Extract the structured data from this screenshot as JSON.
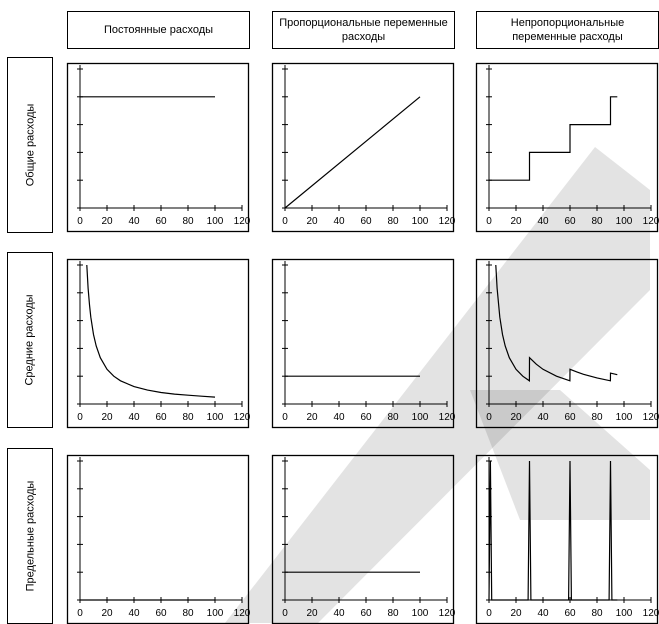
{
  "column_headers": [
    "Постоянные расходы",
    "Пропорциональные переменные расходы",
    "Непропорциональные переменные расходы"
  ],
  "row_headers": [
    "Общие расходы",
    "Средние расходы",
    "Предельные расходы"
  ],
  "chart_data": [
    {
      "row": "Общие расходы",
      "column": "Постоянные расходы",
      "type": "line",
      "xlim": [
        0,
        120
      ],
      "ylim": [
        0,
        100
      ],
      "xticks": [
        "0",
        "20",
        "40",
        "60",
        "80",
        "100",
        "120"
      ],
      "series": [
        {
          "x": [
            0,
            100
          ],
          "y": [
            80,
            80
          ]
        }
      ]
    },
    {
      "row": "Общие расходы",
      "column": "Пропорциональные переменные расходы",
      "type": "line",
      "xlim": [
        0,
        120
      ],
      "ylim": [
        0,
        100
      ],
      "xticks": [
        "0",
        "20",
        "40",
        "60",
        "80",
        "100",
        "120"
      ],
      "series": [
        {
          "x": [
            0,
            100
          ],
          "y": [
            0,
            80
          ]
        }
      ]
    },
    {
      "row": "Общие расходы",
      "column": "Непропорциональные переменные расходы",
      "type": "line",
      "xlim": [
        0,
        120
      ],
      "ylim": [
        0,
        100
      ],
      "xticks": [
        "0",
        "20",
        "40",
        "60",
        "80",
        "100",
        "120"
      ],
      "series": [
        {
          "x": [
            0,
            30,
            30,
            60,
            60,
            90,
            90,
            95
          ],
          "y": [
            20,
            20,
            40,
            40,
            60,
            60,
            80,
            80
          ]
        }
      ]
    },
    {
      "row": "Средние расходы",
      "column": "Постоянные расходы",
      "type": "line",
      "xlim": [
        0,
        120
      ],
      "ylim": [
        0,
        100
      ],
      "xticks": [
        "0",
        "20",
        "40",
        "60",
        "80",
        "100",
        "120"
      ],
      "series": [
        {
          "x": [
            5,
            6,
            7,
            8,
            10,
            12,
            15,
            20,
            25,
            30,
            40,
            50,
            60,
            70,
            80,
            90,
            100
          ],
          "y": [
            100,
            83.3,
            71.4,
            62.5,
            50,
            41.7,
            33.3,
            25,
            20,
            16.7,
            12.5,
            10,
            8.3,
            7.1,
            6.3,
            5.6,
            5
          ]
        }
      ]
    },
    {
      "row": "Средние расходы",
      "column": "Пропорциональные переменные расходы",
      "type": "line",
      "xlim": [
        0,
        120
      ],
      "ylim": [
        0,
        100
      ],
      "xticks": [
        "0",
        "20",
        "40",
        "60",
        "80",
        "100",
        "120"
      ],
      "series": [
        {
          "x": [
            0,
            100
          ],
          "y": [
            20,
            20
          ]
        }
      ]
    },
    {
      "row": "Средние расходы",
      "column": "Непропорциональные переменные расходы",
      "type": "line",
      "xlim": [
        0,
        120
      ],
      "ylim": [
        0,
        100
      ],
      "xticks": [
        "0",
        "20",
        "40",
        "60",
        "80",
        "100",
        "120"
      ],
      "series": [
        {
          "x": [
            5,
            6,
            8,
            10,
            12,
            15,
            20,
            25,
            29.9,
            30,
            35,
            40,
            50,
            59.9,
            60,
            65,
            70,
            80,
            89.9,
            90,
            95
          ],
          "y": [
            100,
            83.3,
            62.5,
            50,
            41.7,
            33.3,
            25,
            20,
            16.7,
            33.3,
            28.6,
            25,
            20,
            16.7,
            25,
            23.1,
            21.4,
            18.8,
            16.7,
            22.2,
            21.1
          ]
        }
      ]
    },
    {
      "row": "Предельные расходы",
      "column": "Постоянные расходы",
      "type": "line",
      "xlim": [
        0,
        120
      ],
      "ylim": [
        0,
        100
      ],
      "xticks": [
        "0",
        "20",
        "40",
        "60",
        "80",
        "100",
        "120"
      ],
      "series": [
        {
          "x": [
            0,
            100
          ],
          "y": [
            0,
            0
          ]
        }
      ]
    },
    {
      "row": "Предельные расходы",
      "column": "Пропорциональные переменные расходы",
      "type": "line",
      "xlim": [
        0,
        120
      ],
      "ylim": [
        0,
        100
      ],
      "xticks": [
        "0",
        "20",
        "40",
        "60",
        "80",
        "100",
        "120"
      ],
      "series": [
        {
          "x": [
            0,
            100
          ],
          "y": [
            20,
            20
          ]
        }
      ]
    },
    {
      "row": "Предельные расходы",
      "column": "Непропорциональные переменные расходы",
      "type": "line",
      "xlim": [
        0,
        120
      ],
      "ylim": [
        0,
        100
      ],
      "xticks": [
        "0",
        "20",
        "40",
        "60",
        "80",
        "100",
        "120"
      ],
      "series": [
        {
          "x": [
            0,
            1,
            2,
            29,
            30,
            31,
            59,
            60,
            61,
            89,
            90,
            91,
            95
          ],
          "y": [
            0,
            100,
            0,
            0,
            100,
            0,
            0,
            100,
            0,
            0,
            100,
            0,
            0
          ]
        }
      ]
    }
  ]
}
